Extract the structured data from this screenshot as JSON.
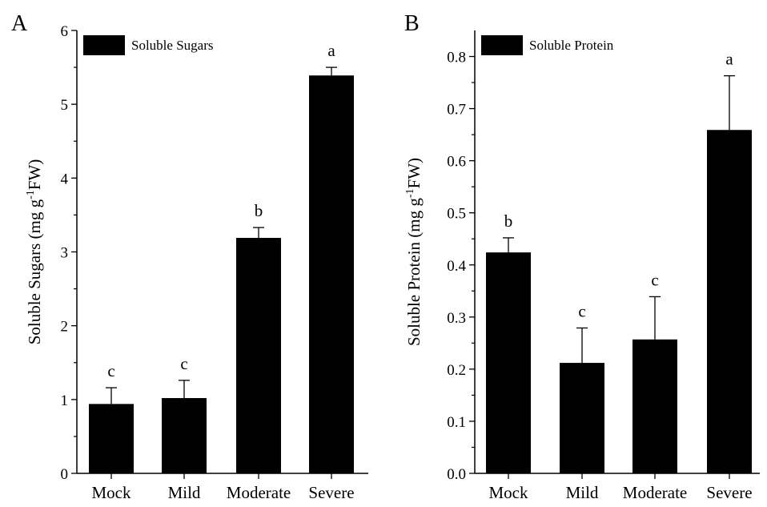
{
  "chart_data": [
    {
      "type": "bar",
      "panel_label": "A",
      "categories": [
        "Mock",
        "Mild",
        "Moderate",
        "Severe"
      ],
      "values": [
        0.94,
        1.02,
        3.19,
        5.39
      ],
      "errors": [
        0.22,
        0.24,
        0.14,
        0.11
      ],
      "significance": [
        "c",
        "c",
        "b",
        "a"
      ],
      "legend": "Soluble Sugars",
      "legend_position": "top-left",
      "ylabel_main": "Soluble Sugars (mg g",
      "ylabel_sup": "-1",
      "ylabel_end": "FW)",
      "ylim": [
        0,
        6
      ],
      "yticks": [
        0,
        1,
        2,
        3,
        4,
        5,
        6
      ],
      "ytick_labels": [
        "0",
        "1",
        "2",
        "3",
        "4",
        "5",
        "6"
      ],
      "bar_color": "#000000",
      "grid": false
    },
    {
      "type": "bar",
      "panel_label": "B",
      "categories": [
        "Mock",
        "Mild",
        "Moderate",
        "Severe"
      ],
      "values": [
        0.424,
        0.212,
        0.257,
        0.659
      ],
      "errors": [
        0.028,
        0.067,
        0.082,
        0.104
      ],
      "significance": [
        "b",
        "c",
        "c",
        "a"
      ],
      "legend": "Soluble Protein",
      "legend_position": "top-left",
      "ylabel_main": "Soluble Protein (mg g",
      "ylabel_sup": "-1",
      "ylabel_end": "FW)",
      "ylim": [
        0,
        0.85
      ],
      "yticks": [
        0,
        0.1,
        0.2,
        0.3,
        0.4,
        0.5,
        0.6,
        0.7,
        0.8
      ],
      "ytick_labels": [
        "0.0",
        "0.1",
        "0.2",
        "0.3",
        "0.4",
        "0.5",
        "0.6",
        "0.7",
        "0.8"
      ],
      "bar_color": "#000000",
      "grid": false
    }
  ]
}
